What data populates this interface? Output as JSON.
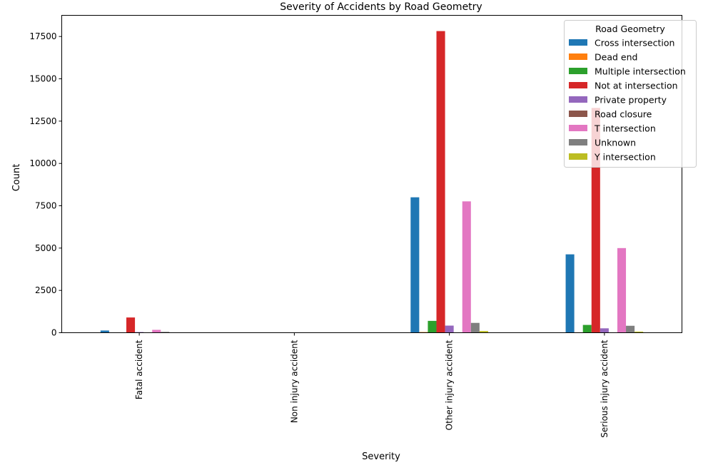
{
  "chart_data": {
    "type": "bar",
    "title": "Severity of Accidents by Road Geometry",
    "xlabel": "Severity",
    "ylabel": "Count",
    "categories": [
      "Fatal accident",
      "Non injury accident",
      "Other injury accident",
      "Serious injury accident"
    ],
    "ylim": [
      0,
      18750
    ],
    "yticks": [
      0,
      2500,
      5000,
      7500,
      10000,
      12500,
      15000,
      17500
    ],
    "grid": false,
    "legend": {
      "title": "Road Geometry",
      "placement": "top-right"
    },
    "series": [
      {
        "name": "Cross intersection",
        "color": "#1f77b4",
        "values": [
          130,
          0,
          8000,
          4630
        ]
      },
      {
        "name": "Dead end",
        "color": "#ff7f0e",
        "values": [
          2,
          0,
          40,
          25
        ]
      },
      {
        "name": "Multiple intersection",
        "color": "#2ca02c",
        "values": [
          10,
          0,
          700,
          460
        ]
      },
      {
        "name": "Not at intersection",
        "color": "#d62728",
        "values": [
          900,
          0,
          17820,
          13280
        ]
      },
      {
        "name": "Private property",
        "color": "#9467bd",
        "values": [
          40,
          0,
          420,
          260
        ]
      },
      {
        "name": "Road closure",
        "color": "#8c564b",
        "values": [
          0,
          0,
          10,
          5
        ]
      },
      {
        "name": "T intersection",
        "color": "#e377c2",
        "values": [
          170,
          0,
          7760,
          5000
        ]
      },
      {
        "name": "Unknown",
        "color": "#7f7f7f",
        "values": [
          50,
          0,
          580,
          410
        ]
      },
      {
        "name": "Y intersection",
        "color": "#bcbd22",
        "values": [
          10,
          0,
          100,
          65
        ]
      }
    ]
  }
}
